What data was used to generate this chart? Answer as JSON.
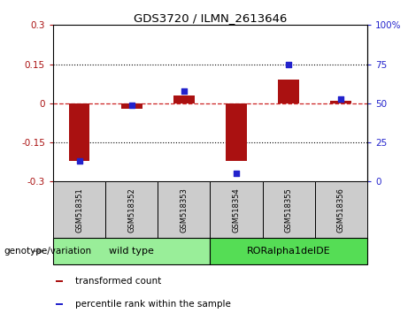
{
  "title": "GDS3720 / ILMN_2613646",
  "samples": [
    "GSM518351",
    "GSM518352",
    "GSM518353",
    "GSM518354",
    "GSM518355",
    "GSM518356"
  ],
  "transformed_count": [
    -0.22,
    -0.02,
    0.03,
    -0.22,
    0.09,
    0.01
  ],
  "percentile_rank_raw": [
    13,
    49,
    58,
    5,
    75,
    53
  ],
  "ylim_left": [
    -0.3,
    0.3
  ],
  "ylim_right": [
    0,
    100
  ],
  "yticks_left": [
    -0.3,
    -0.15,
    0,
    0.15,
    0.3
  ],
  "ytick_labels_left": [
    "-0.3",
    "-0.15",
    "0",
    "0.15",
    "0.3"
  ],
  "yticks_right": [
    0,
    25,
    50,
    75,
    100
  ],
  "ytick_labels_right": [
    "0",
    "25",
    "50",
    "75",
    "100%"
  ],
  "bar_color": "#aa1111",
  "dot_color": "#2222cc",
  "zero_line_color": "#cc2222",
  "grid_color": "#000000",
  "groups": [
    {
      "label": "wild type",
      "indices": [
        0,
        1,
        2
      ],
      "color": "#99ee99"
    },
    {
      "label": "RORalpha1delDE",
      "indices": [
        3,
        4,
        5
      ],
      "color": "#55dd55"
    }
  ],
  "genotype_label": "genotype/variation",
  "legend_items": [
    {
      "label": "transformed count",
      "color": "#aa1111"
    },
    {
      "label": "percentile rank within the sample",
      "color": "#2222cc"
    }
  ],
  "bar_width": 0.4,
  "cell_bg": "#cccccc",
  "cell_border": "#888888"
}
